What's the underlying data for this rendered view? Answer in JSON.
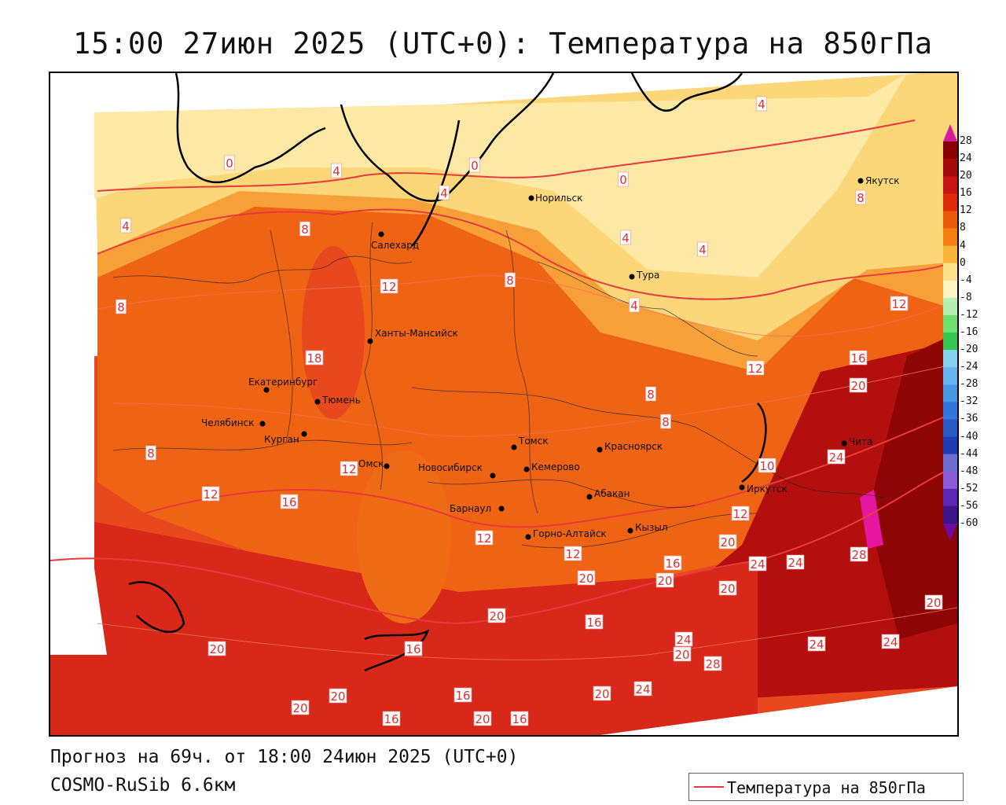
{
  "title": "15:00 27июн 2025 (UTC+0): Температура на 850гПа",
  "footer": {
    "forecast": "Прогноз на 69ч. от 18:00 24июн 2025 (UTC+0)",
    "model": "COSMO-RuSib 6.6км"
  },
  "legend": {
    "line_label": "Температура на 850гПа",
    "line_color": "#e83a3a"
  },
  "colorbar": {
    "labels": [
      "28",
      "24",
      "20",
      "16",
      "12",
      "8",
      "4",
      "0",
      "-4",
      "-8",
      "-12",
      "-16",
      "-20",
      "-24",
      "-28",
      "-32",
      "-36",
      "-40",
      "-44",
      "-48",
      "-52",
      "-56",
      "-60"
    ],
    "colors": [
      "#8b0000",
      "#a50a0a",
      "#c81414",
      "#de2a0a",
      "#eb5a0a",
      "#f57d12",
      "#fab43c",
      "#fde08a",
      "#fff5c0",
      "#b4f0b4",
      "#6ee06e",
      "#32c850",
      "#82d2f0",
      "#64b4f0",
      "#4696e6",
      "#3278dc",
      "#285ac8",
      "#1e3cb4",
      "#6e6ed2",
      "#8c5adc",
      "#5a28b4",
      "#3c148c",
      "#6e0aa0"
    ]
  },
  "cities": [
    {
      "name": "Норильск"
    },
    {
      "name": "Якутск"
    },
    {
      "name": "Салехард"
    },
    {
      "name": "Тура"
    },
    {
      "name": "Ханты-Мансийск"
    },
    {
      "name": "Екатеринбург"
    },
    {
      "name": "Тюмень"
    },
    {
      "name": "Челябинск"
    },
    {
      "name": "Курган"
    },
    {
      "name": "Омск"
    },
    {
      "name": "Новосибирск"
    },
    {
      "name": "Томск"
    },
    {
      "name": "Кемерово"
    },
    {
      "name": "Красноярск"
    },
    {
      "name": "Абакан"
    },
    {
      "name": "Барнаул"
    },
    {
      "name": "Горно-Алтайск"
    },
    {
      "name": "Кызыл"
    },
    {
      "name": "Иркутск"
    },
    {
      "name": "Чита"
    }
  ],
  "isotherm_labels": [
    "0",
    "4",
    "8",
    "12",
    "16",
    "20",
    "24",
    "28"
  ]
}
